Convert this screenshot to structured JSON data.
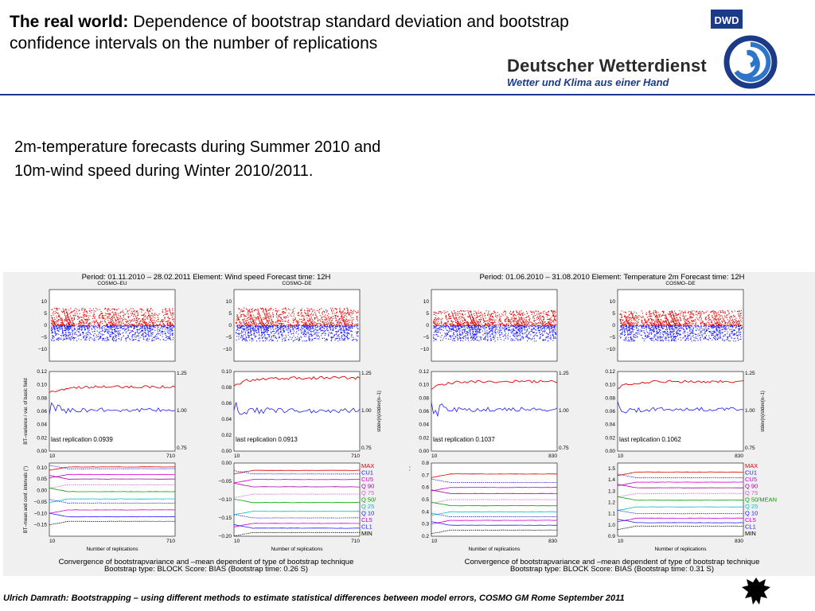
{
  "header": {
    "title_bold": "The real world:",
    "title_rest": " Dependence of bootstrap standard deviation and bootstrap confidence intervals on the number of replications"
  },
  "logo": {
    "badge": "DWD",
    "name": "Deutscher Wetterdienst",
    "tagline": "Wetter und Klima aus einer Hand"
  },
  "subtitle": {
    "line1": "2m-temperature forecasts during Summer 2010 and",
    "line2": "10m-wind speed during Winter 2010/2011."
  },
  "footer": {
    "text": "Ulrich Damrath: Bootstrapping – using different methods to estimate statistical differences between model errors, COSMO GM Rome September  2011"
  },
  "colors": {
    "red": "#e00000",
    "blue": "#1a1aff",
    "accent": "#1c3a8a"
  },
  "chart_data": [
    {
      "type": "figure-panel",
      "title": "Period: 01.11.2010 – 28.02.2011 Element: Wind speed Forecast time: 12H",
      "caption1": "Convergence of bootstrapvariance and –mean dependent of type of bootstrap technique",
      "caption2": "Bootstrap type: BLOCK Score: BIAS (Bootstrap time:  0.26 S)",
      "xlabel": "Number of replications",
      "ylabel_var": "BT–variance / var. of basic field",
      "ylabel_ci": "BT–mean and conf. intervals (°)",
      "ylabel_right": "stdev(n)/stdev(n–1)",
      "columns": [
        {
          "model": "COSMO–EU",
          "scatter": {
            "type": "scatter",
            "ylim": [
              -15,
              15
            ],
            "yticks": [
              "10",
              "5",
              "0",
              "−5",
              "−10"
            ],
            "center": 0,
            "red_spread": 7,
            "blue_spread": 6,
            "dots": 900
          },
          "variance": {
            "type": "line",
            "xlim": [
              10,
              710
            ],
            "xticks": [
              "10",
              "710"
            ],
            "ylim": [
              0,
              0.12
            ],
            "yticks": [
              "0.12",
              "0.10",
              "0.08",
              "0.06",
              "0.04",
              "0.02",
              "0.00"
            ],
            "right_ticks": [
              "1.25",
              "1.00",
              "0.75"
            ],
            "red_level": 0.097,
            "blue_level": 0.062,
            "annotation": "last replication 0.0939"
          },
          "ci": {
            "type": "line",
            "xlim": [
              10,
              710
            ],
            "xticks": [
              "10",
              "710"
            ],
            "ylim": [
              -0.2,
              0.12
            ],
            "yticks": [
              "0.10",
              "0.05",
              "0.00",
              "−0.05",
              "−0.10",
              "−0.15"
            ],
            "levels": [
              0.103,
              0.095,
              0.07,
              0.05,
              0.025,
              -0.005,
              -0.037,
              -0.055,
              -0.085,
              -0.115,
              -0.135,
              -0.155
            ]
          }
        },
        {
          "model": "COSMO–DE",
          "scatter": {
            "type": "scatter",
            "ylim": [
              -15,
              15
            ],
            "yticks": [
              "10",
              "5",
              "0",
              "−5",
              "−10"
            ],
            "center": 0,
            "red_spread": 7,
            "blue_spread": 6,
            "dots": 900
          },
          "variance": {
            "type": "line",
            "xlim": [
              10,
              710
            ],
            "xticks": [
              "10",
              "710"
            ],
            "ylim": [
              0,
              0.1
            ],
            "yticks": [
              "0.10",
              "0.08",
              "0.06",
              "0.04",
              "0.02",
              "0.00"
            ],
            "right_ticks": [
              "1.25",
              "1.00",
              "0.75"
            ],
            "red_level": 0.092,
            "blue_level": 0.051,
            "annotation": "last replication 0.0913"
          },
          "ci": {
            "type": "line",
            "xlim": [
              10,
              710
            ],
            "xticks": [
              "10",
              "710"
            ],
            "ylim": [
              -0.2,
              0.0
            ],
            "yticks": [
              "0.00",
              "−0.05",
              "−0.10",
              "−0.15",
              "−0.20"
            ],
            "levels": [
              -0.02,
              -0.03,
              -0.045,
              -0.065,
              -0.085,
              -0.108,
              -0.132,
              -0.15,
              -0.165,
              -0.178,
              -0.19,
              -0.2
            ]
          }
        },
        {
          "model": "",
          "scatter": {
            "type": "scatter",
            "ylim": [
              -15,
              15
            ],
            "yticks": [
              "10",
              "5",
              "0",
              "−5",
              "−10"
            ],
            "center": 0,
            "red_spread": 6,
            "blue_spread": 6,
            "dots": 900
          },
          "variance": {
            "type": "line",
            "xlim": [
              10,
              830
            ],
            "xticks": [
              "10",
              "830"
            ],
            "ylim": [
              0,
              0.12
            ],
            "yticks": [
              "0.12",
              "0.10",
              "0.08",
              "0.06",
              "0.04",
              "0.02",
              "0.00"
            ],
            "right_ticks": [
              "1.25",
              "1.00",
              "0.75"
            ],
            "red_level": 0.105,
            "blue_level": 0.063,
            "annotation": "last replication 0.1037"
          },
          "ci": {
            "type": "line",
            "xlim": [
              10,
              830
            ],
            "xticks": [
              "10",
              "830"
            ],
            "ylim": [
              0.2,
              0.8
            ],
            "yticks": [
              "0.8",
              "0.7",
              "0.6",
              "0.5",
              "0.4",
              "0.3",
              "0.2"
            ],
            "levels": [
              0.71,
              0.64,
              0.6,
              0.55,
              0.5,
              0.45,
              0.4,
              0.36,
              0.33,
              0.29,
              0.25,
              0.2
            ]
          }
        },
        {
          "model": "COSMO–DE",
          "scatter": {
            "type": "scatter",
            "ylim": [
              -15,
              15
            ],
            "yticks": [
              "10",
              "5",
              "0",
              "−5",
              "−10"
            ],
            "center": 0,
            "red_spread": 6,
            "blue_spread": 6,
            "dots": 900
          },
          "variance": {
            "type": "line",
            "xlim": [
              10,
              830
            ],
            "xticks": [
              "10",
              "830"
            ],
            "ylim": [
              0,
              0.12
            ],
            "yticks": [
              "0.12",
              "0.10",
              "0.08",
              "0.06",
              "0.04",
              "0.02",
              "0.00"
            ],
            "right_ticks": [
              "1.25",
              "1.00",
              "0.75"
            ],
            "red_level": 0.105,
            "blue_level": 0.063,
            "annotation": "last replication 0.1062"
          },
          "ci": {
            "type": "line",
            "xlim": [
              10,
              830
            ],
            "xticks": [
              "10",
              "830"
            ],
            "ylim": [
              0.9,
              1.55
            ],
            "yticks": [
              "1.5",
              "1.4",
              "1.3",
              "1.2",
              "1.1",
              "1.0",
              "0.9"
            ],
            "levels": [
              1.47,
              1.42,
              1.38,
              1.33,
              1.28,
              1.22,
              1.16,
              1.1,
              1.06,
              1.02,
              0.99,
              0.93
            ]
          }
        }
      ]
    },
    {
      "type": "figure-panel",
      "title": "Period: 01.06.2010 – 31.08.2010 Element: Temperature 2m Forecast time: 12H",
      "caption1": "Convergence of bootstrapvariance and –mean dependent of type of bootstrap technique",
      "caption2": "Bootstrap type: BLOCK Score: BIAS (Bootstrap time:  0.31 S)",
      "xlabel": "Number of replications",
      "ylabel_var": "BT–variance / var. of basic field",
      "ylabel_ci": "BT–mean and conf. intervals (°)",
      "ylabel_right": "stdev(n)/stdev(n–1)"
    }
  ],
  "legend": {
    "wind": [
      "MAX",
      "CU1",
      "CU5",
      "Q 90",
      "Q 75",
      "Q 50/",
      "Q 25",
      "Q 10",
      "CL5",
      "CL1",
      "MIN"
    ],
    "temp": [
      "MAX",
      "CU1",
      "CU5",
      "Q 90",
      "Q 75",
      "Q 50/MEAN",
      "Q 25",
      "Q 10",
      "CL5",
      "CL1",
      "MIN"
    ],
    "colors": [
      "#e00000",
      "#1a1aff",
      "#d000d0",
      "#a000a0",
      "#d060d0",
      "#00a000",
      "#00c0c0",
      "#1a1aff",
      "#d000d0",
      "#1a1aff",
      "#000000"
    ]
  },
  "wind_period": "Period: 01.11.2010 – 28.02.2011 Element: Wind speed Forecast time: 12H",
  "temp_period": "Period: 01.06.2010 – 31.08.2010 Element: Temperature 2m Forecast time: 12H",
  "wind_caption1": "Convergence of bootstrapvariance and –mean dependent of type of bootstrap technique",
  "wind_caption2": "Bootstrap type: BLOCK Score: BIAS (Bootstrap time:  0.26 S)",
  "temp_caption1": "Convergence of bootstrapvariance and –mean dependent of type of bootstrap technique",
  "temp_caption2": "Bootstrap type: BLOCK Score: BIAS (Bootstrap time:  0.31 S)"
}
